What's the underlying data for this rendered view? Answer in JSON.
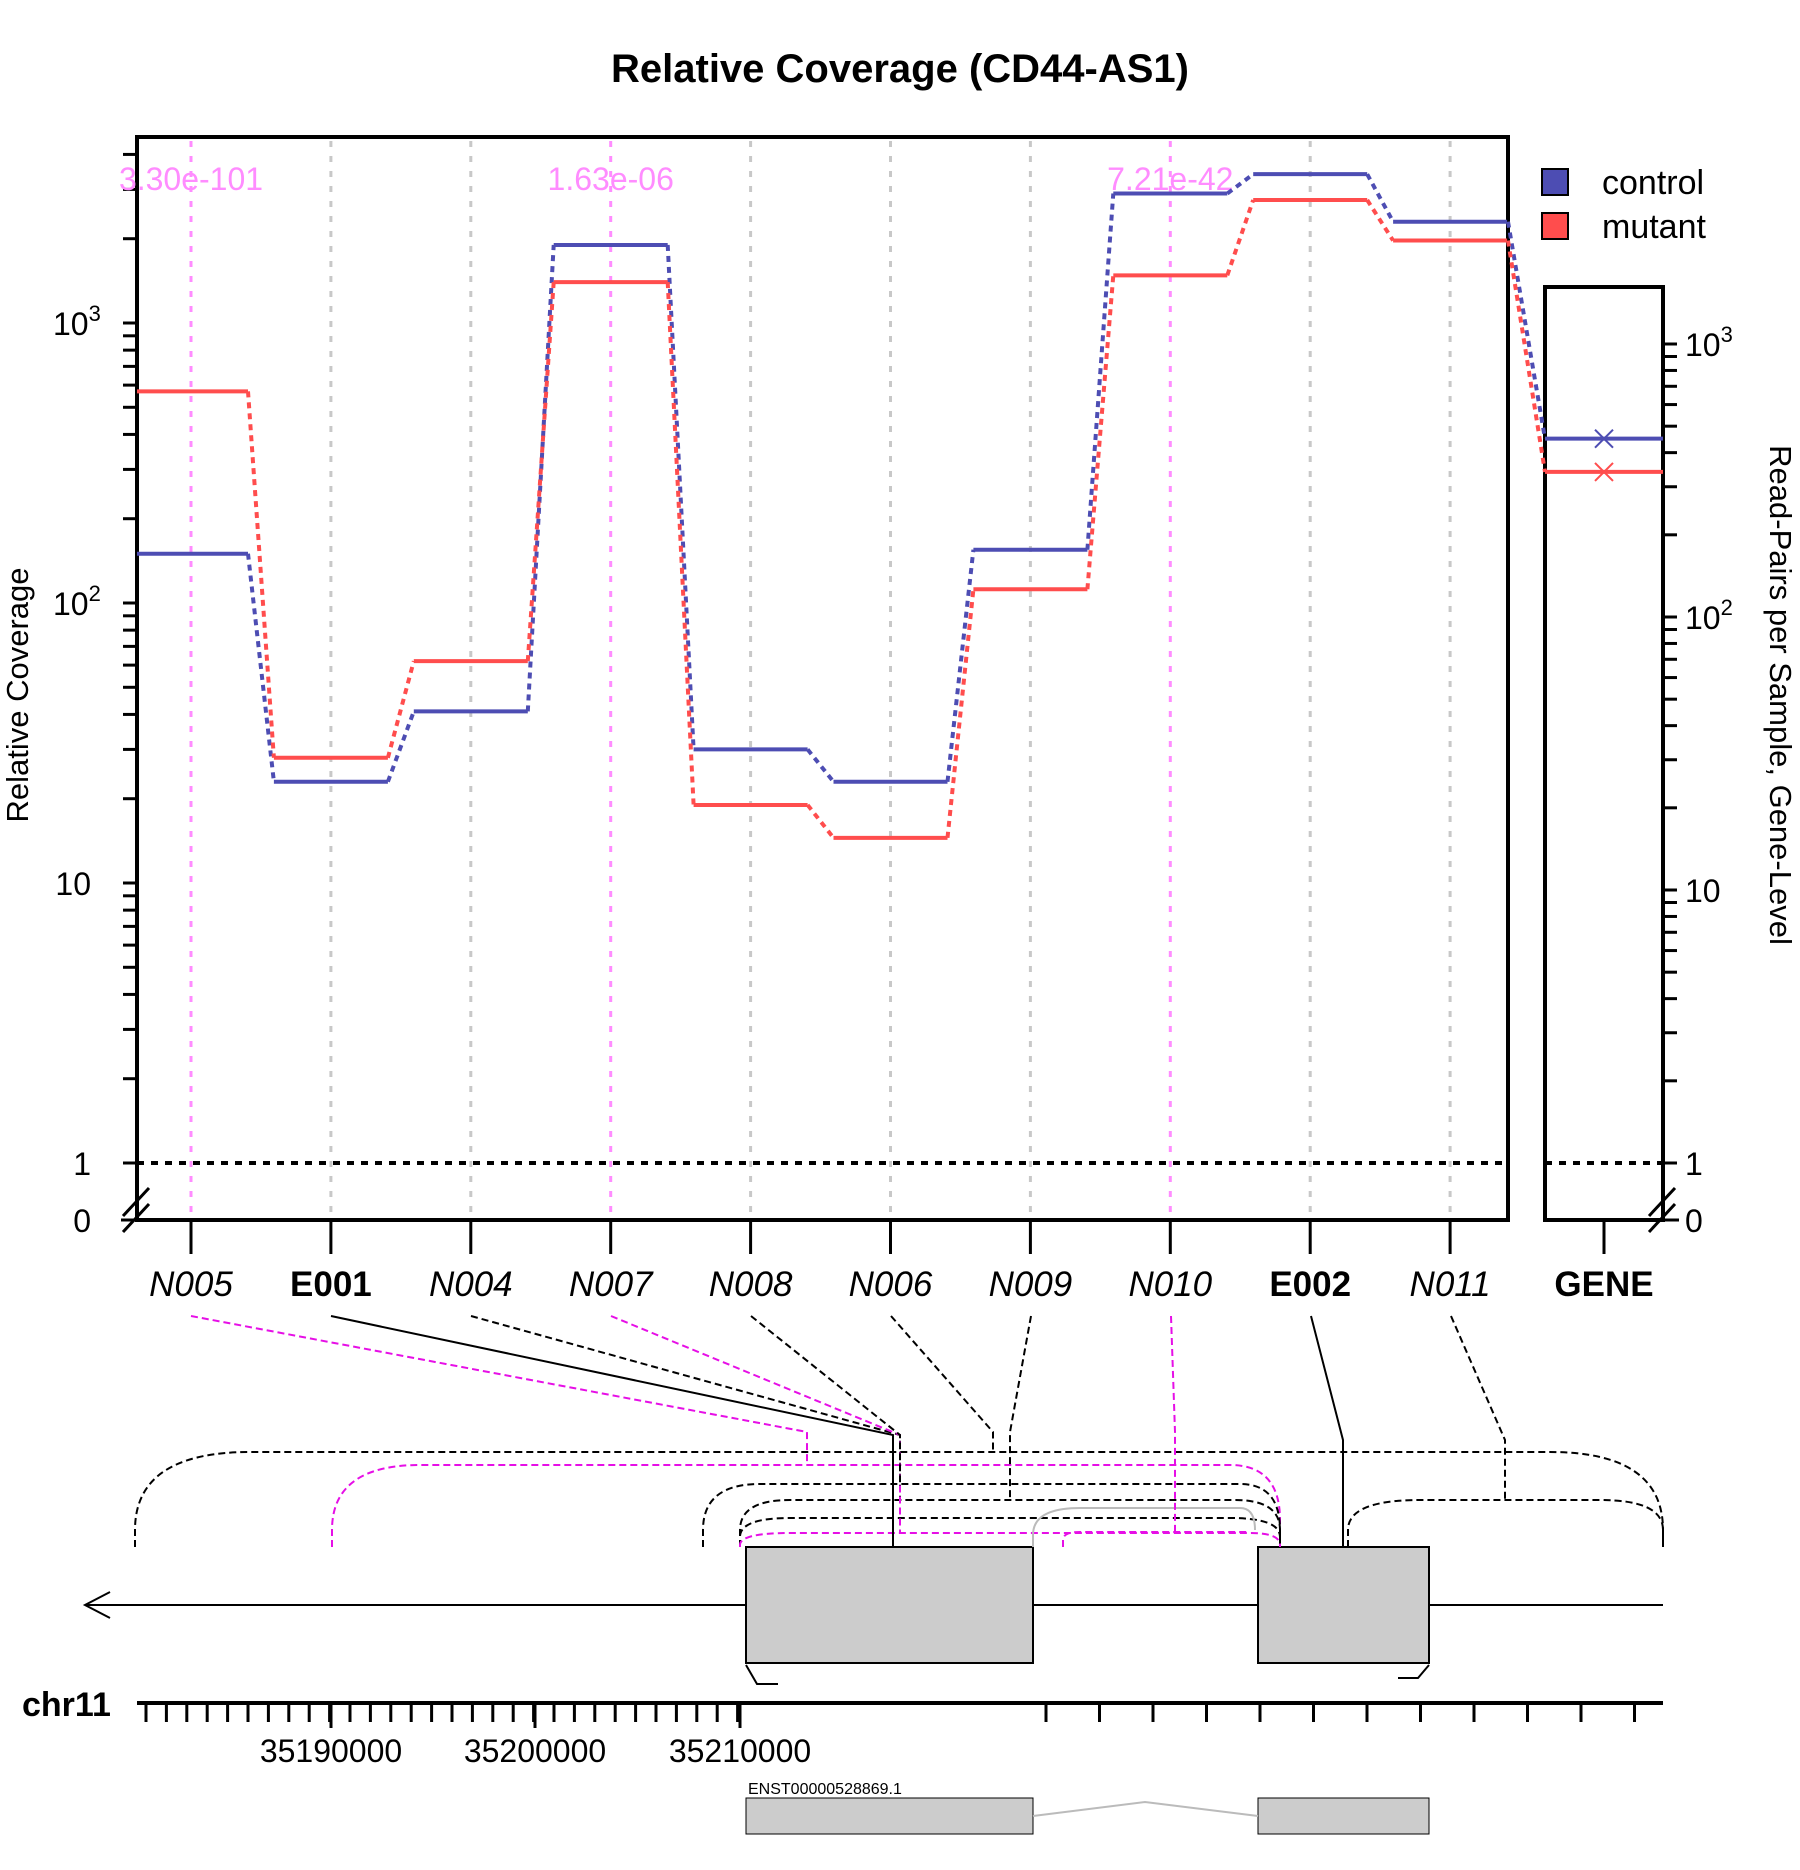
{
  "chart_data": {
    "type": "line",
    "title": "Relative Coverage (CD44-AS1)",
    "ylabel": "Relative Coverage",
    "ylabel_right": "Read-Pairs per Sample, Gene-Level",
    "y_scale": "log",
    "y_ticks": [
      "0",
      "1",
      "10",
      "10^2",
      "10^3"
    ],
    "right_y_ticks": [
      "0",
      "1",
      "10",
      "10^2",
      "10^3"
    ],
    "reference_line": 1,
    "grid": "vertical dashed",
    "legend_position": "top-right",
    "features": [
      {
        "label": "N005",
        "type": "novel",
        "pvalue": "3.30e-101",
        "significant": true
      },
      {
        "label": "E001",
        "type": "exon",
        "pvalue": "",
        "significant": false
      },
      {
        "label": "N004",
        "type": "novel",
        "pvalue": "",
        "significant": false
      },
      {
        "label": "N007",
        "type": "novel",
        "pvalue": "1.63e-06",
        "significant": true
      },
      {
        "label": "N008",
        "type": "novel",
        "pvalue": "",
        "significant": false
      },
      {
        "label": "N006",
        "type": "novel",
        "pvalue": "",
        "significant": false
      },
      {
        "label": "N009",
        "type": "novel",
        "pvalue": "",
        "significant": false
      },
      {
        "label": "N010",
        "type": "novel",
        "pvalue": "7.21e-42",
        "significant": true
      },
      {
        "label": "E002",
        "type": "exon",
        "pvalue": "",
        "significant": false
      },
      {
        "label": "N011",
        "type": "novel",
        "pvalue": "",
        "significant": false
      }
    ],
    "series": [
      {
        "name": "control",
        "color": "#4d4db3",
        "values": [
          150,
          23,
          41,
          1900,
          30,
          23,
          155,
          2900,
          3400,
          2300
        ]
      },
      {
        "name": "mutant",
        "color": "#ff4d4d",
        "values": [
          570,
          28,
          62,
          1400,
          19,
          14.5,
          112,
          1480,
          2750,
          1970
        ]
      }
    ],
    "gene_panel": {
      "label": "GENE",
      "control": 450,
      "mutant": 340
    },
    "genome": {
      "chromosome": "chr11",
      "tick_labels": [
        "35190000",
        "35200000",
        "35210000"
      ],
      "transcript": "ENST00000528869.1"
    }
  }
}
